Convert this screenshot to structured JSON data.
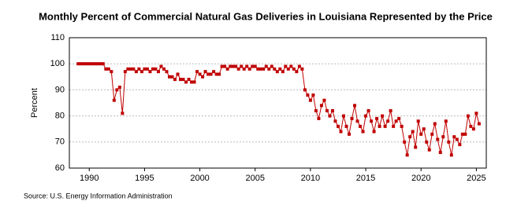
{
  "chart_data": {
    "type": "line",
    "title": "Monthly Percent of Commercial Natural Gas Deliveries in Louisiana Represented by the Price",
    "y_label": "Percent",
    "source": "Source: U.S. Energy Information Administration",
    "xlim": [
      1988.2,
      2025.9
    ],
    "xticks": [
      1990,
      1995,
      2000,
      2005,
      2010,
      2015,
      2020,
      2025
    ],
    "ylim": [
      60,
      110
    ],
    "yticks": [
      60,
      70,
      80,
      90,
      100,
      110
    ],
    "grid": true,
    "x": [
      1989,
      1989.25,
      1989.5,
      1989.75,
      1990,
      1990.25,
      1990.5,
      1990.75,
      1991,
      1991.25,
      1991.5,
      1991.75,
      1992,
      1992.25,
      1992.5,
      1992.75,
      1993,
      1993.25,
      1993.5,
      1993.75,
      1994,
      1994.25,
      1994.5,
      1994.75,
      1995,
      1995.25,
      1995.5,
      1995.75,
      1996,
      1996.25,
      1996.5,
      1996.75,
      1997,
      1997.25,
      1997.5,
      1997.75,
      1998,
      1998.25,
      1998.5,
      1998.75,
      1999,
      1999.25,
      1999.5,
      1999.75,
      2000,
      2000.25,
      2000.5,
      2000.75,
      2001,
      2001.25,
      2001.5,
      2001.75,
      2002,
      2002.25,
      2002.5,
      2002.75,
      2003,
      2003.25,
      2003.5,
      2003.75,
      2004,
      2004.25,
      2004.5,
      2004.75,
      2005,
      2005.25,
      2005.5,
      2005.75,
      2006,
      2006.25,
      2006.5,
      2006.75,
      2007,
      2007.25,
      2007.5,
      2007.75,
      2008,
      2008.25,
      2008.5,
      2008.75,
      2009,
      2009.25,
      2009.5,
      2009.75,
      2010,
      2010.25,
      2010.5,
      2010.75,
      2011,
      2011.25,
      2011.5,
      2011.75,
      2012,
      2012.25,
      2012.5,
      2012.75,
      2013,
      2013.25,
      2013.5,
      2013.75,
      2014,
      2014.25,
      2014.5,
      2014.75,
      2015,
      2015.25,
      2015.5,
      2015.75,
      2016,
      2016.25,
      2016.5,
      2016.75,
      2017,
      2017.25,
      2017.5,
      2017.75,
      2018,
      2018.25,
      2018.5,
      2018.75,
      2019,
      2019.25,
      2019.5,
      2019.75,
      2020,
      2020.25,
      2020.5,
      2020.75,
      2021,
      2021.25,
      2021.5,
      2021.75,
      2022,
      2022.25,
      2022.5,
      2022.75,
      2023,
      2023.25,
      2023.5,
      2023.75,
      2024,
      2024.25,
      2024.5,
      2024.75,
      2025,
      2025.25
    ],
    "series": [
      {
        "color": "#c00000",
        "values": [
          100,
          100,
          100,
          100,
          100,
          100,
          100,
          100,
          100,
          100,
          98,
          98,
          97,
          86,
          90,
          91,
          81,
          97,
          98,
          98,
          98,
          97,
          98,
          97,
          98,
          98,
          97,
          98,
          98,
          97,
          99,
          98,
          97,
          95,
          95,
          94,
          96,
          94,
          94,
          93,
          94,
          93,
          93,
          97,
          96,
          95,
          97,
          96,
          96,
          97,
          96,
          96,
          99,
          99,
          98,
          99,
          99,
          99,
          98,
          99,
          98,
          99,
          98,
          99,
          99,
          98,
          98,
          98,
          99,
          98,
          99,
          98,
          97,
          98,
          97,
          99,
          98,
          99,
          98,
          97,
          99,
          98,
          90,
          88,
          86,
          88,
          82,
          79,
          84,
          86,
          82,
          80,
          82,
          78,
          76,
          74,
          80,
          76,
          73,
          79,
          84,
          78,
          76,
          74,
          80,
          82,
          78,
          74,
          79,
          76,
          80,
          76,
          78,
          82,
          76,
          78,
          79,
          76,
          70,
          65,
          72,
          74,
          68,
          78,
          73,
          75,
          70,
          67,
          73,
          77,
          71,
          66,
          72,
          78,
          70,
          65,
          72,
          71,
          69,
          73,
          73,
          80,
          76,
          75,
          81,
          77
        ]
      }
    ]
  }
}
